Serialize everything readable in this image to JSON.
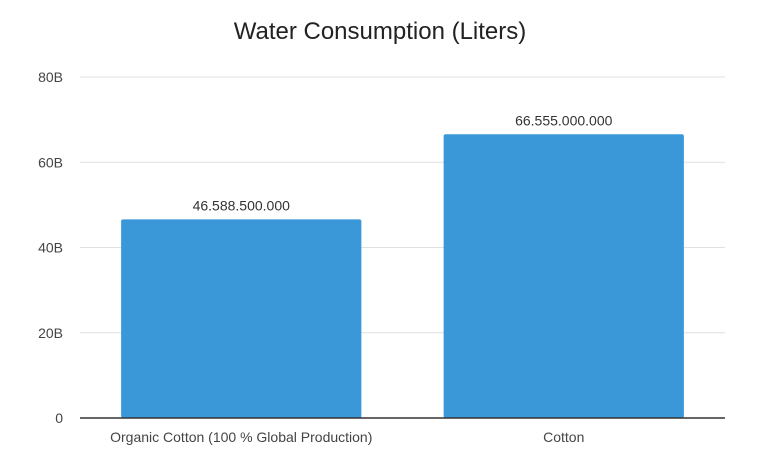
{
  "chart_data": {
    "type": "bar",
    "title": "Water Consumption (Liters)",
    "xlabel": "",
    "ylabel": "",
    "categories": [
      "Organic Cotton (100 % Global Production)",
      "Cotton"
    ],
    "values": [
      46588500000,
      66555000000
    ],
    "data_labels": [
      "46.588.500.000",
      "66.555.000.000"
    ],
    "ylim": [
      0,
      80000000000
    ],
    "yticks": [
      0,
      20000000000,
      40000000000,
      60000000000,
      80000000000
    ],
    "ytick_labels": [
      "0",
      "20B",
      "40B",
      "60B",
      "80B"
    ],
    "grid": true,
    "legend": "none",
    "colors": {
      "bar": "#3a98d9",
      "grid": "#e0e0e0",
      "axis": "#333333",
      "text": "#444444"
    }
  }
}
